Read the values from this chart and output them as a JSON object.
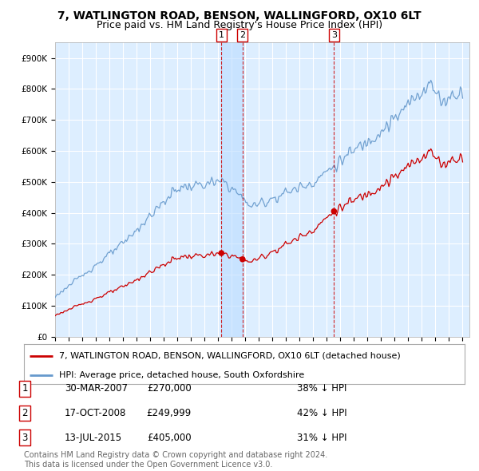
{
  "title": "7, WATLINGTON ROAD, BENSON, WALLINGFORD, OX10 6LT",
  "subtitle": "Price paid vs. HM Land Registry's House Price Index (HPI)",
  "ylabel_ticks": [
    "£0",
    "£100K",
    "£200K",
    "£300K",
    "£400K",
    "£500K",
    "£600K",
    "£700K",
    "£800K",
    "£900K"
  ],
  "ytick_values": [
    0,
    100000,
    200000,
    300000,
    400000,
    500000,
    600000,
    700000,
    800000,
    900000
  ],
  "ylim": [
    0,
    950000
  ],
  "xlim_start": 1995.0,
  "xlim_end": 2025.5,
  "sale_dates": [
    2007.24,
    2008.8,
    2015.53
  ],
  "sale_prices": [
    270000,
    249999,
    405000
  ],
  "sale_labels": [
    "1",
    "2",
    "3"
  ],
  "vline_dates": [
    2007.24,
    2008.8,
    2015.53
  ],
  "shade_between_sales": [
    [
      2007.24,
      2008.8
    ]
  ],
  "legend_entries": [
    "7, WATLINGTON ROAD, BENSON, WALLINGFORD, OX10 6LT (detached house)",
    "HPI: Average price, detached house, South Oxfordshire"
  ],
  "table_rows": [
    [
      "1",
      "30-MAR-2007",
      "£270,000",
      "38% ↓ HPI"
    ],
    [
      "2",
      "17-OCT-2008",
      "£249,999",
      "42% ↓ HPI"
    ],
    [
      "3",
      "13-JUL-2015",
      "£405,000",
      "31% ↓ HPI"
    ]
  ],
  "footnote": "Contains HM Land Registry data © Crown copyright and database right 2024.\nThis data is licensed under the Open Government Licence v3.0.",
  "hpi_color": "#6699cc",
  "property_color": "#cc0000",
  "vline_color": "#cc0000",
  "plot_bg_color": "#ddeeff",
  "background_color": "#ffffff",
  "grid_color": "#ffffff",
  "title_fontsize": 10,
  "subtitle_fontsize": 9,
  "tick_fontsize": 7.5,
  "legend_fontsize": 8,
  "table_fontsize": 8.5,
  "footnote_fontsize": 7
}
